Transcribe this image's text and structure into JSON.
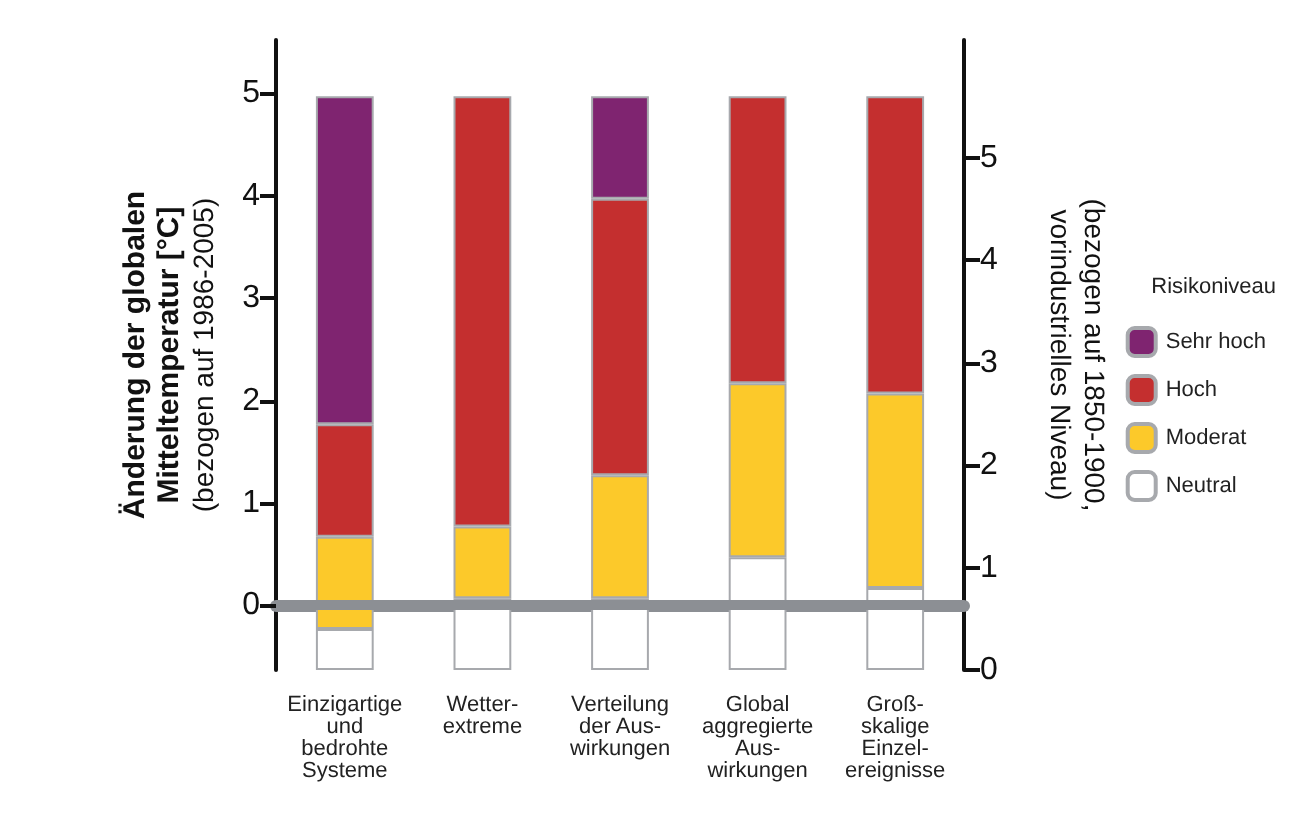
{
  "chart_data": {
    "type": "bar",
    "stacked": true,
    "categories": [
      "Einzigartige\nund\nbedrohte\nSysteme",
      "Wetter-\nextreme",
      "Verteilung\nder Aus-\nwirkungen",
      "Global\naggregierte\nAus-\nwirkungen",
      "Groß-\nskalige\nEinzel-\nereignisse"
    ],
    "series": [
      {
        "name": "Neutral",
        "color": "#ffffff",
        "axis": "y2",
        "values": [
          0.4,
          0.7,
          0.7,
          1.1,
          0.8
        ]
      },
      {
        "name": "Moderat",
        "color": "#fcc92a",
        "axis": "y2",
        "values": [
          0.9,
          0.7,
          1.2,
          1.7,
          1.9
        ]
      },
      {
        "name": "Hoch",
        "color": "#c42f2f",
        "axis": "y2",
        "values": [
          1.1,
          4.2,
          2.7,
          2.8,
          2.9
        ]
      },
      {
        "name": "Sehr hoch",
        "color": "#7f2470",
        "axis": "y2",
        "values": [
          3.2,
          0,
          1,
          0,
          0
        ]
      }
    ],
    "ylabel": "Änderung der globalen\nMitteltemperatur [°C]\n(bezogen auf 1986-2005)",
    "y2label": "(bezogen auf 1850-1900,\nvorindustrielles Niveau)",
    "legend_title": "Risikoniveau",
    "legend": "right",
    "ylim": [
      -0.63,
      5.52
    ],
    "yticks": [
      0,
      1,
      2,
      3,
      4,
      5
    ],
    "y2lim": [
      0,
      6.15
    ],
    "y2ticks": [
      0,
      1,
      2,
      3,
      4,
      5
    ],
    "ref_lines": [
      {
        "axis": "y",
        "value": 0,
        "color": "#8c8f94"
      }
    ]
  }
}
